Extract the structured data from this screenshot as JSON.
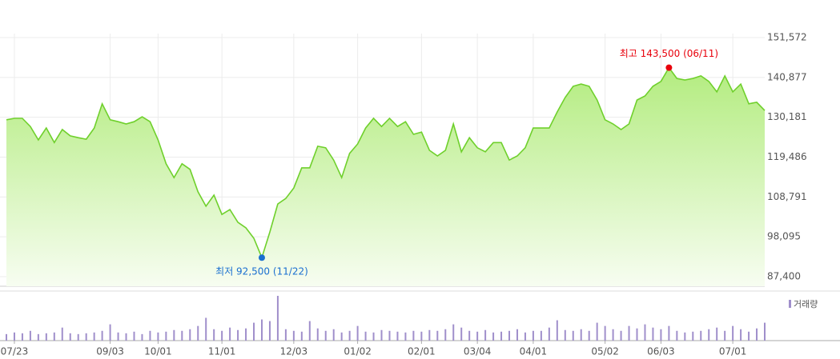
{
  "chart_data": {
    "type": "area",
    "categories": [
      null,
      "07/23",
      null,
      null,
      null,
      null,
      null,
      null,
      null,
      null,
      null,
      null,
      null,
      "09/03",
      null,
      null,
      null,
      null,
      null,
      "10/01",
      null,
      null,
      null,
      null,
      null,
      null,
      null,
      "11/01",
      null,
      null,
      null,
      null,
      null,
      null,
      null,
      null,
      "12/03",
      null,
      null,
      null,
      null,
      null,
      null,
      null,
      "01/02",
      null,
      null,
      null,
      null,
      null,
      null,
      null,
      "02/01",
      null,
      null,
      null,
      null,
      null,
      null,
      "03/04",
      null,
      null,
      null,
      null,
      null,
      null,
      "04/01",
      null,
      null,
      null,
      null,
      null,
      null,
      null,
      null,
      "05/02",
      null,
      null,
      null,
      null,
      null,
      null,
      "06/03",
      null,
      null,
      null,
      null,
      null,
      null,
      null,
      null,
      "07/01",
      null,
      null,
      null,
      null
    ],
    "series": [
      {
        "color": "#6fd02c",
        "values": [
          129500,
          129900,
          129900,
          127700,
          124100,
          127300,
          123400,
          126900,
          125200,
          124700,
          124300,
          127300,
          133800,
          129500,
          129000,
          128400,
          129000,
          130300,
          129000,
          124100,
          117700,
          114000,
          117700,
          116200,
          110200,
          106300,
          109300,
          104100,
          105400,
          102000,
          100500,
          97700,
          92500,
          99400,
          106900,
          108400,
          111200,
          116600,
          116600,
          122400,
          122000,
          118700,
          114000,
          120500,
          123000,
          127300,
          129900,
          127700,
          129900,
          127700,
          129000,
          125600,
          126200,
          121300,
          119800,
          121300,
          128400,
          120900,
          124700,
          122000,
          120900,
          123400,
          123400,
          118700,
          119800,
          122000,
          127300,
          127300,
          127300,
          131600,
          135500,
          138500,
          139100,
          138500,
          134800,
          129500,
          128400,
          126900,
          128400,
          134800,
          135900,
          138500,
          139800,
          143500,
          140600,
          140200,
          140600,
          141300,
          139800,
          137000,
          141300,
          137000,
          139100,
          133800,
          134200,
          132000
        ]
      },
      {
        "name": "거래량",
        "type": "bar",
        "color": "#a08fcb",
        "values": [
          8,
          10,
          9,
          12,
          8,
          9,
          10,
          16,
          9,
          8,
          9,
          10,
          12,
          20,
          10,
          9,
          11,
          8,
          12,
          10,
          11,
          13,
          12,
          14,
          18,
          28,
          14,
          12,
          16,
          13,
          15,
          22,
          26,
          24,
          55,
          14,
          12,
          11,
          24,
          15,
          12,
          14,
          10,
          12,
          18,
          11,
          10,
          13,
          12,
          11,
          10,
          12,
          11,
          13,
          12,
          14,
          20,
          16,
          12,
          11,
          13,
          10,
          11,
          12,
          14,
          10,
          12,
          12,
          16,
          25,
          13,
          12,
          14,
          12,
          22,
          18,
          14,
          12,
          18,
          15,
          20,
          16,
          14,
          18,
          12,
          10,
          11,
          12,
          14,
          16,
          12,
          18,
          14,
          11,
          15,
          22
        ]
      }
    ],
    "ylim": [
      87400,
      151572
    ],
    "yticks": [
      {
        "value": 87400,
        "label": "87,400"
      },
      {
        "value": 98095,
        "label": "98,095"
      },
      {
        "value": 108791,
        "label": "108,791"
      },
      {
        "value": 119486,
        "label": "119,486"
      },
      {
        "value": 130181,
        "label": "130,181"
      },
      {
        "value": 140877,
        "label": "140,877"
      },
      {
        "value": 151572,
        "label": "151,572"
      }
    ],
    "grid": true,
    "high": {
      "label": "최고 143,500 (06/11)",
      "color": "#e8000b"
    },
    "low": {
      "label": "최저 92,500 (11/22)",
      "color": "#1a6fd0"
    }
  }
}
